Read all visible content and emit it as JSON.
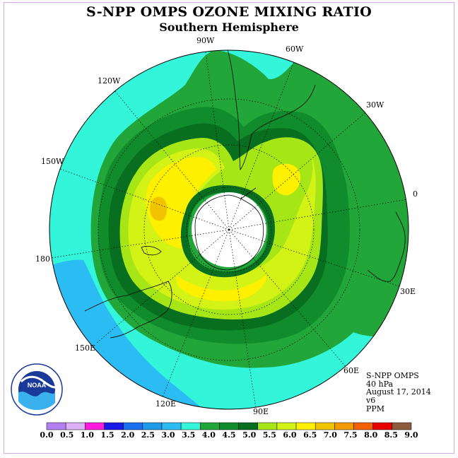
{
  "title": "S-NPP OMPS OZONE MIXING RATIO",
  "subtitle": "Southern Hemisphere",
  "longitude_labels": {
    "lon_90W": "90W",
    "lon_60W": "60W",
    "lon_30W": "30W",
    "lon_0": "0",
    "lon_30E": "30E",
    "lon_60E": "60E",
    "lon_90E": "90E",
    "lon_120E": "120E",
    "lon_150E": "150E",
    "lon_180": "180",
    "lon_150W": "150W",
    "lon_120W": "120W"
  },
  "info": {
    "instrument": "S-NPP OMPS",
    "level": "40 hPa",
    "date": "August 17, 2014",
    "version": "v6",
    "units": "PPM"
  },
  "logo": {
    "text": "NOAA",
    "ring_text": "NATIONAL OCEANIC AND ATMOSPHERIC ADMINISTRATION · U.S. DEPARTMENT OF COMMERCE"
  },
  "colorbar": {
    "labels": [
      "0.0",
      "0.5",
      "1.0",
      "1.5",
      "2.0",
      "2.5",
      "3.0",
      "3.5",
      "4.0",
      "4.5",
      "5.0",
      "5.5",
      "6.0",
      "6.5",
      "7.0",
      "7.5",
      "8.0",
      "8.5",
      "9.0"
    ],
    "colors": [
      "#b47ff0",
      "#ddb0f5",
      "#ff1adf",
      "#1a1ae6",
      "#1a6ef0",
      "#1e9be8",
      "#2abcf2",
      "#33f5d9",
      "#22a63a",
      "#108c2c",
      "#086e20",
      "#a6e617",
      "#d3f216",
      "#fff000",
      "#f2c400",
      "#f29a00",
      "#f26000",
      "#e60000",
      "#8c5a3c"
    ]
  },
  "map_colors": {
    "v3_5_4_0": "#33f5d9",
    "v3_0_3_5": "#2abcf2",
    "v4_0_4_5": "#22a63a",
    "v4_5_5_0": "#108c2c",
    "v5_0_5_5": "#086e20",
    "v5_5_6_0": "#a6e617",
    "v6_0_6_5": "#d3f216",
    "v6_5_7_0": "#fff000",
    "v7_0_7_5": "#f2c400",
    "no_data": "#ffffff"
  }
}
